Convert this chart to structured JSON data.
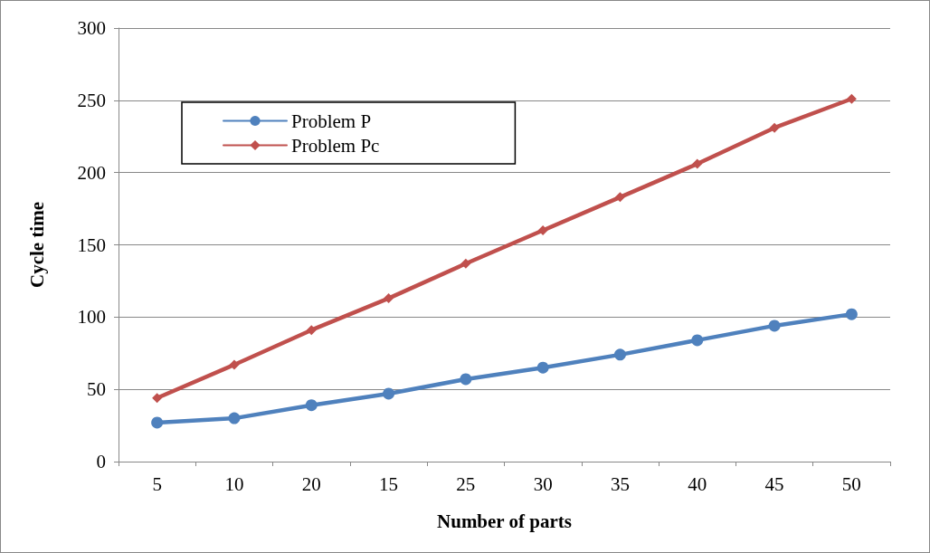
{
  "chart_data": {
    "type": "line",
    "xlabel": "Number of parts",
    "ylabel": "Cycle time",
    "categories": [
      "5",
      "10",
      "20",
      "15",
      "25",
      "30",
      "35",
      "40",
      "45",
      "50"
    ],
    "series": [
      {
        "name": "Problem P",
        "color": "#4f81bd",
        "marker": "circle",
        "values": [
          27,
          30,
          39,
          47,
          57,
          65,
          74,
          84,
          94,
          102
        ]
      },
      {
        "name": "Problem Pc",
        "color": "#c0504d",
        "marker": "diamond",
        "values": [
          44,
          67,
          91,
          113,
          137,
          160,
          183,
          206,
          231,
          251
        ]
      }
    ],
    "ylim": [
      0,
      300
    ],
    "yticks": [
      0,
      50,
      100,
      150,
      200,
      250,
      300
    ],
    "grid": "y",
    "legend": "top left",
    "line_style": "solid"
  }
}
